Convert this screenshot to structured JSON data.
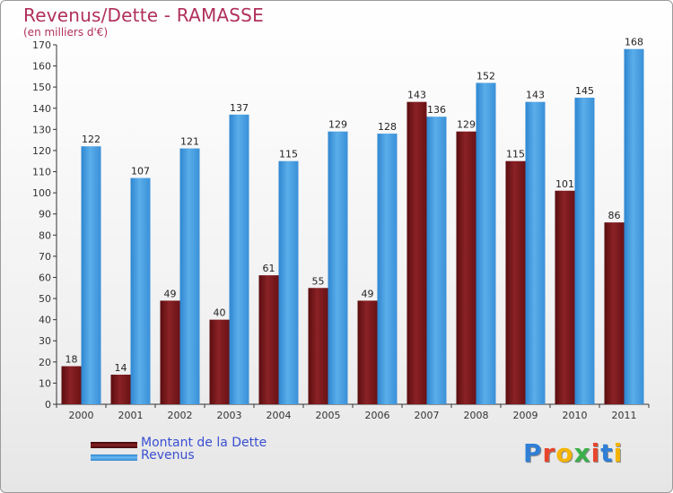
{
  "title": "Revenus/Dette - RAMASSE",
  "subtitle": "(en milliers d'€)",
  "legend": [
    {
      "label": "Montant de la Dette",
      "color": "#7a1518"
    },
    {
      "label": "Revenus",
      "color": "#3d95dc"
    }
  ],
  "logo": {
    "letters": [
      "P",
      "r",
      "o",
      "x",
      "i",
      "t",
      "i"
    ],
    "colors": [
      "#2f7fd6",
      "#e7462d",
      "#f4b400",
      "#3bb04a",
      "#e7462d",
      "#2f7fd6",
      "#f4b400"
    ]
  },
  "chart_data": {
    "type": "bar",
    "categories": [
      "2000",
      "2001",
      "2002",
      "2003",
      "2004",
      "2005",
      "2006",
      "2007",
      "2008",
      "2009",
      "2010",
      "2011"
    ],
    "series": [
      {
        "name": "Montant de la Dette",
        "color": "#7a1518",
        "values": [
          18,
          14,
          49,
          40,
          61,
          55,
          49,
          143,
          129,
          115,
          101,
          86
        ]
      },
      {
        "name": "Revenus",
        "color": "#3d95dc",
        "values": [
          122,
          107,
          121,
          137,
          115,
          129,
          128,
          136,
          152,
          143,
          145,
          168
        ]
      }
    ],
    "ylim": [
      0,
      170
    ],
    "yticks": [
      0,
      10,
      20,
      30,
      40,
      50,
      60,
      70,
      80,
      90,
      100,
      110,
      120,
      130,
      140,
      150,
      160,
      170
    ],
    "grid": false,
    "legend_position": "bottom-left"
  }
}
